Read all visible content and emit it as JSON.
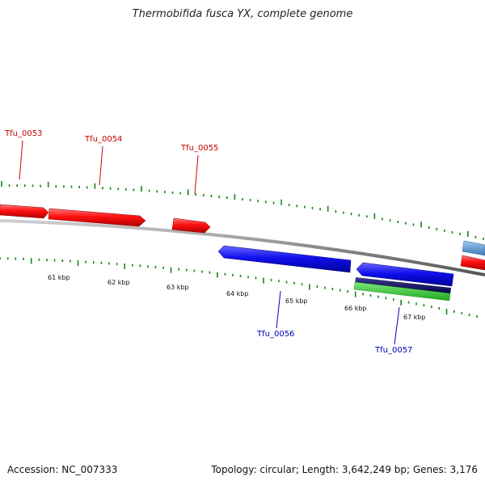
{
  "title": "Thermobifida fusca YX, complete genome",
  "footer": {
    "accession": "Accession: NC_007333",
    "summary": "Topology: circular; Length: 3,642,249 bp; Genes: 3,176"
  },
  "colors": {
    "forward_gene": "#ff0000",
    "reverse_gene": "#0000ee",
    "rna": "#5f9fd6",
    "navy_track": "#000066",
    "green_track": "#2ecc40",
    "tick": "#118811",
    "backbone": "#888888",
    "forward_label": "#cc0000",
    "reverse_label": "#0000bb"
  },
  "ruler_labels": [
    "61 kbp",
    "62 kbp",
    "63 kbp",
    "64 kbp",
    "65 kbp",
    "66 kbp",
    "67 kbp"
  ],
  "gene_labels": {
    "tfu_0053": "Tfu_0053",
    "tfu_0054": "Tfu_0054",
    "tfu_0055": "Tfu_0055",
    "tfu_0056": "Tfu_0056",
    "tfu_0057": "Tfu_0057"
  }
}
